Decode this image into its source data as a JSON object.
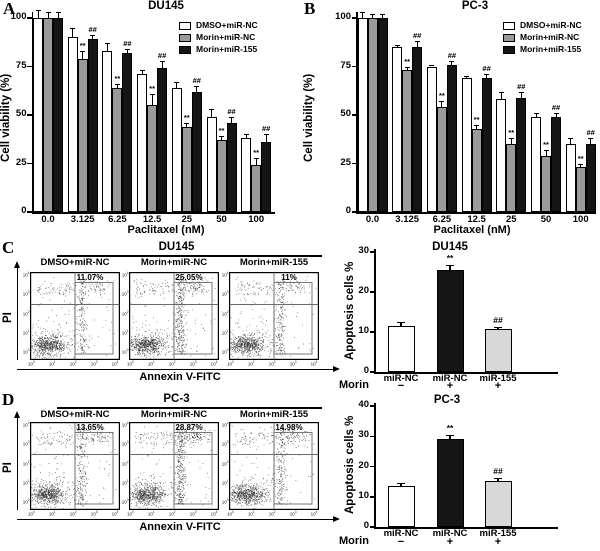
{
  "figure_title": "Morin / miR-155 paclitaxel sensitivity figure",
  "chart_data": [
    {
      "id": "panel-A-viability",
      "panel_letter": "A",
      "type": "bar",
      "title": "DU145",
      "xlabel": "Paclitaxel (nM)",
      "ylabel": "Cell viability (%)",
      "ylim": [
        0,
        100
      ],
      "yticks": [
        0,
        25,
        50,
        75,
        100
      ],
      "grid": false,
      "legend_position": "top-right",
      "categories": [
        "0.0",
        "3.125",
        "6.25",
        "12.5",
        "25",
        "50",
        "100"
      ],
      "series": [
        {
          "name": "DMSO+miR-NC",
          "color": "#ffffff",
          "values": [
            100,
            90,
            83,
            71,
            64,
            49,
            38
          ],
          "errors": [
            4,
            5,
            4,
            2,
            3,
            4,
            2
          ],
          "sig": [
            "",
            "",
            "",
            "",
            "",
            "",
            ""
          ]
        },
        {
          "name": "Morin+miR-NC",
          "color": "#9a9a9a",
          "values": [
            100,
            79,
            64,
            55,
            44,
            37,
            24
          ],
          "errors": [
            3,
            4,
            2,
            6,
            2,
            2,
            4
          ],
          "sig": [
            "",
            "**",
            "**",
            "**",
            "**",
            "**",
            "**"
          ]
        },
        {
          "name": "Morin+miR-155",
          "color": "#151515",
          "values": [
            100,
            89,
            82,
            74,
            62,
            46,
            36
          ],
          "errors": [
            3,
            2,
            2,
            4,
            3,
            3,
            4
          ],
          "sig": [
            "",
            "##",
            "##",
            "##",
            "##",
            "##",
            "##"
          ]
        }
      ]
    },
    {
      "id": "panel-B-viability",
      "panel_letter": "B",
      "type": "bar",
      "title": "PC-3",
      "xlabel": "Paclitaxel (nM)",
      "ylabel": "Cell viability (%)",
      "ylim": [
        0,
        100
      ],
      "yticks": [
        0,
        25,
        50,
        75,
        100
      ],
      "grid": false,
      "legend_position": "top-right",
      "categories": [
        "0.0",
        "3.125",
        "6.25",
        "12.5",
        "25",
        "50",
        "100"
      ],
      "series": [
        {
          "name": "DMSO+miR-NC",
          "color": "#ffffff",
          "values": [
            100,
            85,
            75,
            69,
            58,
            49,
            35
          ],
          "errors": [
            3,
            1,
            1,
            1,
            4,
            2,
            3
          ],
          "sig": [
            "",
            "",
            "",
            "",
            "",
            "",
            ""
          ]
        },
        {
          "name": "Morin+miR-NC",
          "color": "#9a9a9a",
          "values": [
            100,
            73,
            54,
            43,
            35,
            29,
            23
          ],
          "errors": [
            2,
            2,
            3,
            2,
            3,
            3,
            2
          ],
          "sig": [
            "",
            "**",
            "**",
            "**",
            "**",
            "**",
            "**"
          ]
        },
        {
          "name": "Morin+miR-155",
          "color": "#151515",
          "values": [
            100,
            85,
            76,
            69,
            59,
            49,
            35
          ],
          "errors": [
            2,
            3,
            2,
            2,
            3,
            2,
            3
          ],
          "sig": [
            "",
            "##",
            "##",
            "##",
            "##",
            "##",
            "##"
          ]
        }
      ]
    },
    {
      "id": "panel-C-flow",
      "panel_letter": "C",
      "type": "scatter",
      "title": "DU145",
      "xlabel": "Annexin V-FITC",
      "ylabel": "PI",
      "axis_scale": "log10",
      "tick_exponents": [
        0,
        1,
        2,
        3,
        4
      ],
      "plots": [
        {
          "condition": "DMSO+miR-NC",
          "gate_percent": "11.07%"
        },
        {
          "condition": "Morin+miR-NC",
          "gate_percent": "25.05%"
        },
        {
          "condition": "Morin+miR-155",
          "gate_percent": "11%"
        }
      ]
    },
    {
      "id": "panel-C-apoptosis",
      "type": "bar",
      "title": "DU145",
      "ylabel": "Apoptosis cells %",
      "ylim": [
        0,
        30
      ],
      "yticks": [
        0,
        10,
        20,
        30
      ],
      "grid": false,
      "categories": [
        "miR-NC",
        "miR-NC",
        "miR-155"
      ],
      "values": [
        11.5,
        25.5,
        10.8
      ],
      "errors": [
        1.0,
        1.2,
        0.5
      ],
      "colors": [
        "#ffffff",
        "#151515",
        "#d8d8d8"
      ],
      "sig": [
        "",
        "**",
        "##"
      ],
      "morin_row": {
        "label": "Morin",
        "values": [
          "−",
          "+",
          "+"
        ]
      }
    },
    {
      "id": "panel-D-flow",
      "panel_letter": "D",
      "type": "scatter",
      "title": "PC-3",
      "xlabel": "Annexin V-FITC",
      "ylabel": "PI",
      "axis_scale": "log10",
      "tick_exponents": [
        0,
        1,
        2,
        3,
        4
      ],
      "plots": [
        {
          "condition": "DMSO+miR-NC",
          "gate_percent": "13.65%"
        },
        {
          "condition": "Morin+miR-NC",
          "gate_percent": "28.87%"
        },
        {
          "condition": "Morin+miR-155",
          "gate_percent": "14.98%"
        }
      ]
    },
    {
      "id": "panel-D-apoptosis",
      "type": "bar",
      "title": "PC-3",
      "ylabel": "Apoptosis cells %",
      "ylim": [
        0,
        40
      ],
      "yticks": [
        0,
        10,
        20,
        30,
        40
      ],
      "grid": false,
      "categories": [
        "miR-NC",
        "miR-NC",
        "miR-155"
      ],
      "values": [
        13.5,
        29.0,
        15.3
      ],
      "errors": [
        1.2,
        1.5,
        1.0
      ],
      "colors": [
        "#ffffff",
        "#151515",
        "#d8d8d8"
      ],
      "sig": [
        "",
        "**",
        "##"
      ],
      "morin_row": {
        "label": "Morin",
        "values": [
          "−",
          "+",
          "+"
        ]
      }
    }
  ]
}
